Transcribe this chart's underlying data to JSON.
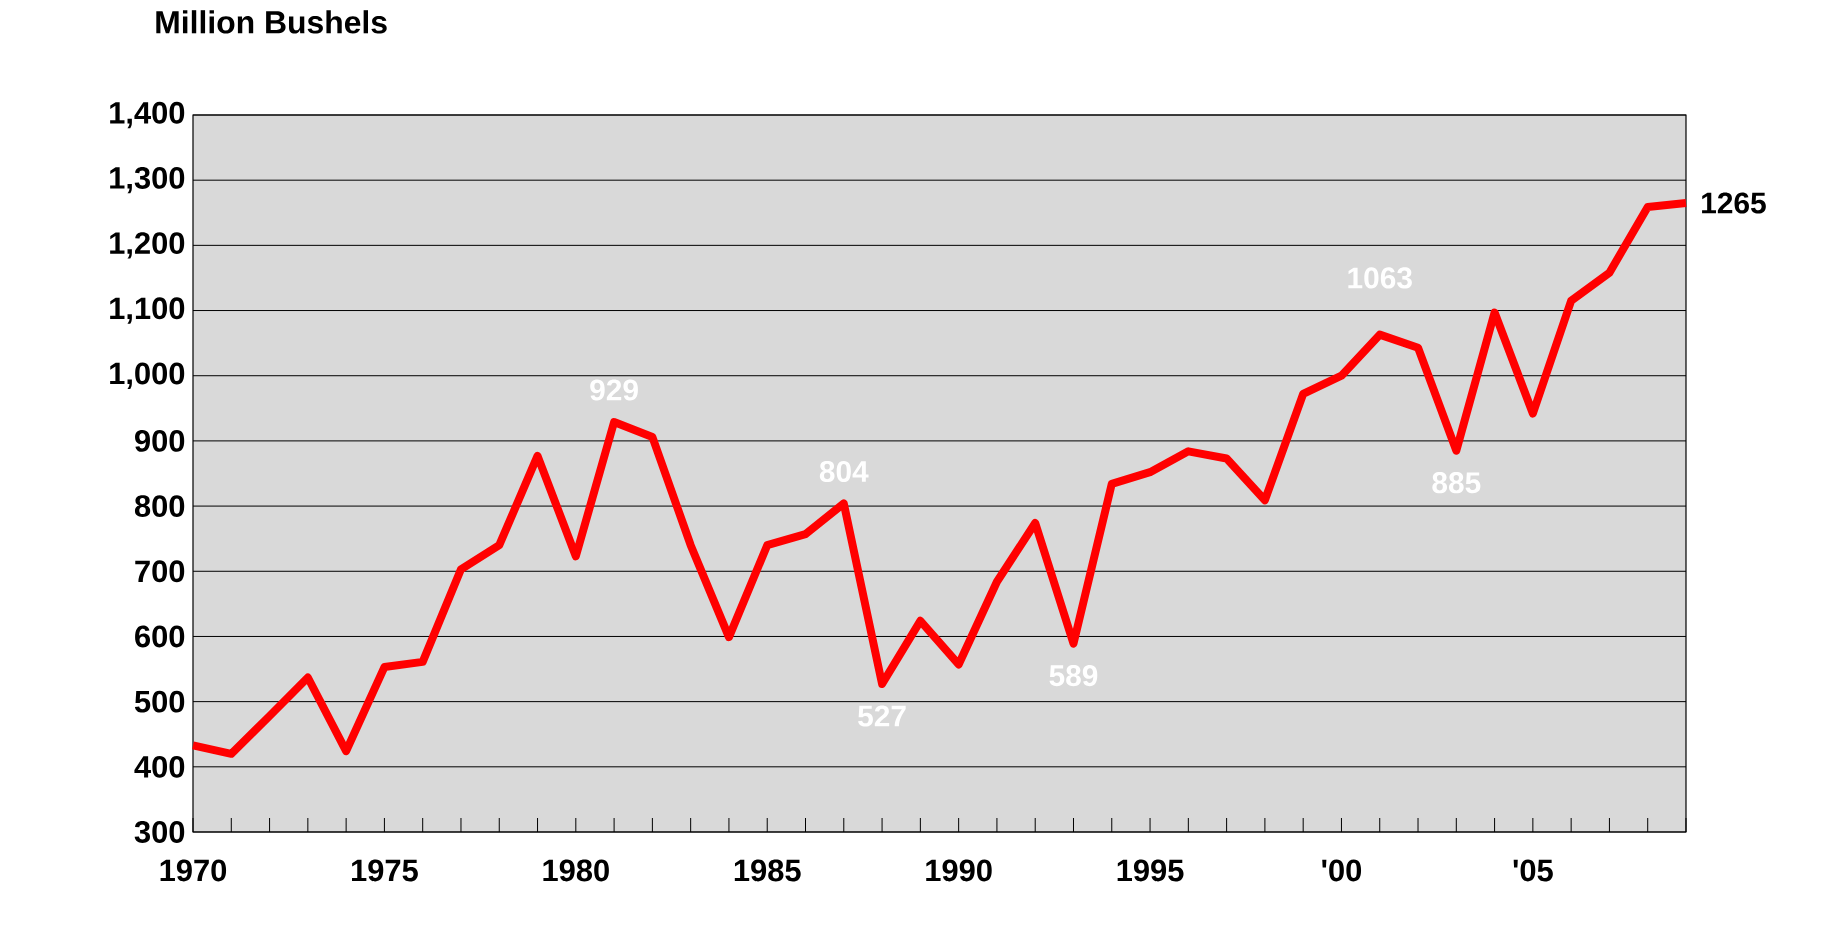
{
  "chart_data": {
    "type": "line",
    "ylabel": "Million Bushels",
    "x": [
      1970,
      1971,
      1972,
      1973,
      1974,
      1975,
      1976,
      1977,
      1978,
      1979,
      1980,
      1981,
      1982,
      1983,
      1984,
      1985,
      1986,
      1987,
      1988,
      1989,
      1990,
      1991,
      1992,
      1993,
      1994,
      1995,
      1996,
      1997,
      1998,
      1999,
      2000,
      2001,
      2002,
      2003,
      2004,
      2005,
      2006,
      2007,
      2008,
      2009
    ],
    "series": [
      {
        "color": "#ff0000",
        "values": [
          433,
          420,
          478,
          537,
          424,
          553,
          561,
          703,
          740,
          877,
          723,
          929,
          906,
          740,
          599,
          740,
          757,
          804,
          527,
          624,
          557,
          684,
          774,
          589,
          834,
          852,
          884,
          873,
          809,
          972,
          1000,
          1063,
          1043,
          885,
          1097,
          942,
          1115,
          1158,
          1259,
          1265
        ],
        "value_labels": [
          null,
          null,
          null,
          null,
          null,
          null,
          null,
          null,
          null,
          null,
          null,
          "929",
          null,
          null,
          null,
          null,
          null,
          "804",
          "527",
          null,
          null,
          null,
          null,
          "589",
          null,
          null,
          null,
          null,
          null,
          null,
          null,
          "1063",
          null,
          "885",
          null,
          null,
          null,
          null,
          null,
          "1265"
        ]
      }
    ],
    "xlim": [
      1970,
      2009
    ],
    "xticks": [
      1970,
      {
        "value": 1971,
        "label": null
      },
      {
        "value": 1972,
        "label": null
      },
      {
        "value": 1973,
        "label": null
      },
      {
        "value": 1974,
        "label": null
      },
      1975,
      {
        "value": 1976,
        "label": null
      },
      {
        "value": 1977,
        "label": null
      },
      {
        "value": 1978,
        "label": null
      },
      {
        "value": 1979,
        "label": null
      },
      1980,
      {
        "value": 1981,
        "label": null
      },
      {
        "value": 1982,
        "label": null
      },
      {
        "value": 1983,
        "label": null
      },
      {
        "value": 1984,
        "label": null
      },
      1985,
      {
        "value": 1986,
        "label": null
      },
      {
        "value": 1987,
        "label": null
      },
      {
        "value": 1988,
        "label": null
      },
      {
        "value": 1989,
        "label": null
      },
      1990,
      {
        "value": 1991,
        "label": null
      },
      {
        "value": 1992,
        "label": null
      },
      {
        "value": 1993,
        "label": null
      },
      {
        "value": 1994,
        "label": null
      },
      1995,
      {
        "value": 1996,
        "label": null
      },
      {
        "value": 1997,
        "label": null
      },
      {
        "value": 1998,
        "label": null
      },
      {
        "value": 1999,
        "label": null
      },
      {
        "value": 2000,
        "label": "'00"
      },
      {
        "value": 2001,
        "label": null
      },
      {
        "value": 2002,
        "label": null
      },
      {
        "value": 2003,
        "label": null
      },
      {
        "value": 2004,
        "label": null
      },
      {
        "value": 2005,
        "label": "'05"
      },
      {
        "value": 2006,
        "label": null
      },
      {
        "value": 2007,
        "label": null
      },
      {
        "value": 2008,
        "label": null
      },
      {
        "value": 2009,
        "label": null
      }
    ],
    "ylim": [
      300,
      1400
    ],
    "yticks": [
      300,
      400,
      500,
      600,
      700,
      800,
      900,
      {
        "value": 1000,
        "label": "1,000"
      },
      {
        "value": 1100,
        "label": "1,100"
      },
      {
        "value": 1200,
        "label": "1,200"
      },
      {
        "value": 1300,
        "label": "1,300"
      },
      {
        "value": 1400,
        "label": "1,400"
      }
    ],
    "grid": "y",
    "marker": "none",
    "line_style": "solid"
  }
}
